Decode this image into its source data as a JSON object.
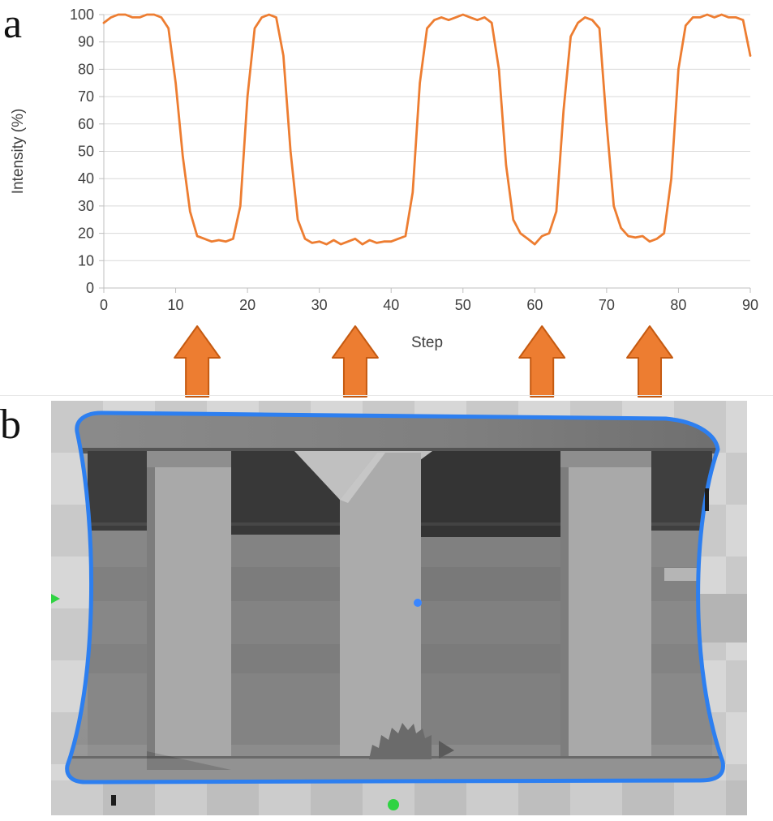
{
  "panel_a": {
    "label": "a"
  },
  "panel_b": {
    "label": "b",
    "outline_color": "#2d7ff0",
    "green_marker_color": "#2fd342",
    "blue_marker_color": "#3a86ff",
    "body_base_color": "#9b9b9b"
  },
  "chart_data": {
    "type": "line",
    "title": "",
    "xlabel": "Step",
    "ylabel": "Intensity (%)",
    "xlim": [
      0,
      90
    ],
    "ylim": [
      0,
      100
    ],
    "x_ticks": [
      0,
      10,
      20,
      30,
      40,
      50,
      60,
      70,
      80,
      90
    ],
    "y_ticks": [
      0,
      10,
      20,
      30,
      40,
      50,
      60,
      70,
      80,
      90,
      100
    ],
    "grid": "horizontal",
    "legend": "none",
    "series": [
      {
        "name": "Intensity (%)",
        "color": "#ED7D31",
        "x0": 0,
        "dx": 1,
        "y": [
          97,
          99,
          100,
          100,
          99,
          99,
          100,
          100,
          99,
          95,
          75,
          48,
          28,
          19,
          18,
          17,
          17.5,
          17,
          18,
          30,
          70,
          95,
          99,
          100,
          99,
          85,
          50,
          25,
          18,
          16.5,
          17,
          16,
          17.5,
          16,
          17,
          18,
          16,
          17.5,
          16.5,
          17,
          17,
          18,
          19,
          35,
          75,
          95,
          98,
          99,
          98,
          99,
          100,
          99,
          98,
          99,
          97,
          80,
          45,
          25,
          20,
          18,
          16,
          19,
          20,
          28,
          65,
          92,
          97,
          99,
          98,
          95,
          60,
          30,
          22,
          19,
          18.5,
          19,
          17,
          18,
          20,
          40,
          80,
          96,
          99,
          99,
          100,
          99,
          100,
          99,
          99,
          98,
          85
        ]
      }
    ],
    "annotations": {
      "arrows_up_at_steps": [
        13,
        35,
        61,
        76
      ],
      "arrow_color": "#ED7D31",
      "arrow_outline": "#C55A11"
    }
  }
}
